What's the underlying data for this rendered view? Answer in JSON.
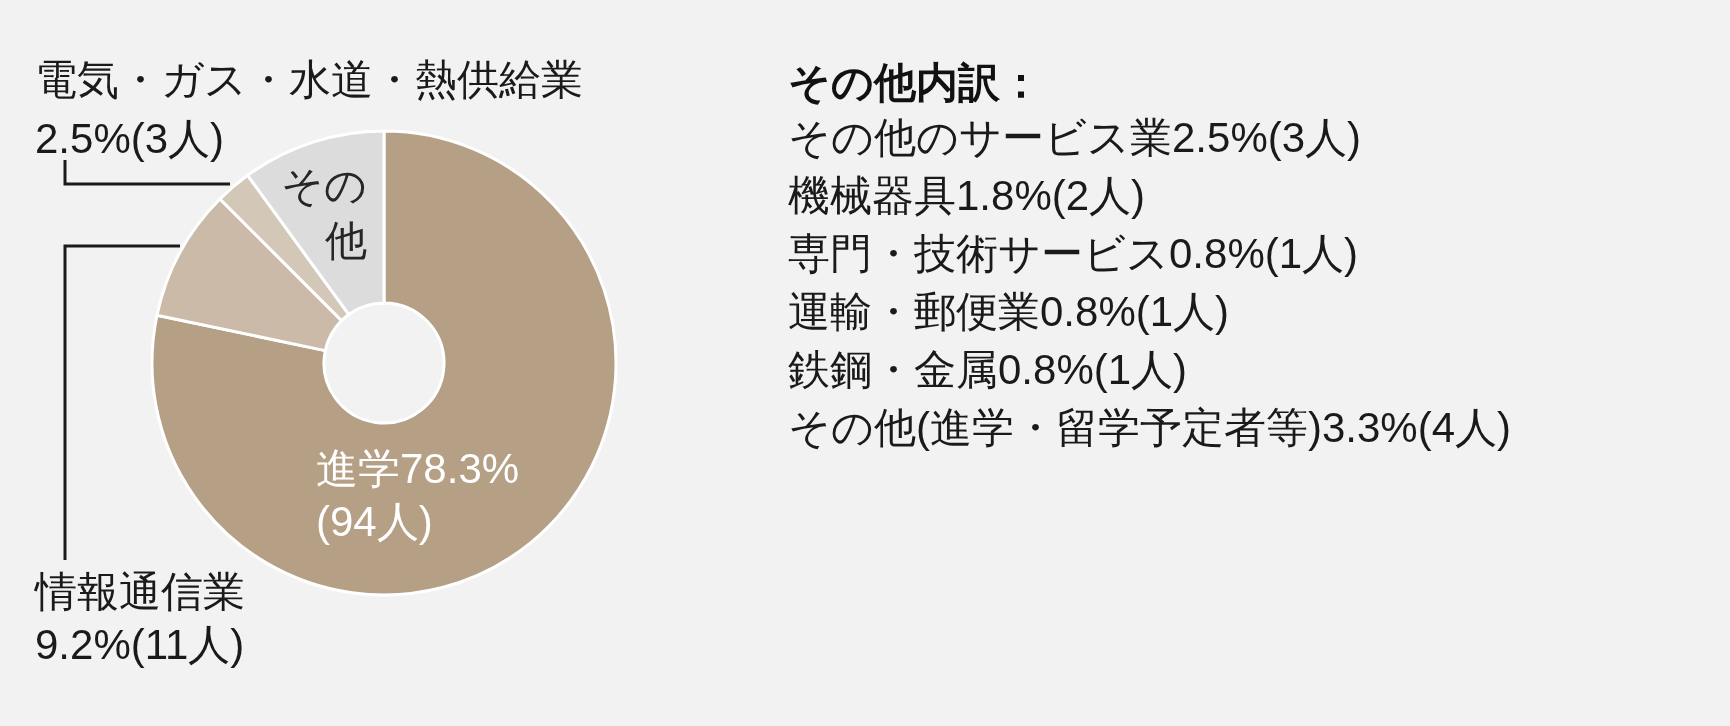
{
  "chart_data": [
    {
      "type": "donut",
      "categories": [
        "進学",
        "情報通信業",
        "電気・ガス・水道・熱供給業",
        "その他"
      ],
      "values": [
        78.3,
        9.2,
        2.5,
        10.0
      ],
      "colors": [
        "#b5a086",
        "#cabaa7",
        "#d3c7b8",
        "#dcdcdc"
      ],
      "value_labels": [
        "78.3%(94人)",
        "9.2%(11人)",
        "2.5%(3人)",
        null
      ]
    },
    {
      "type": "other",
      "title": "その他内訳：",
      "annotations": [
        "その他のサービス業2.5%(3人)",
        "機械器具1.8%(2人)",
        "専門・技術サービス0.8%(1人)",
        "運輸・郵便業0.8%(1人)",
        "鉄鋼・金属0.8%(1人)",
        "その他(進学・留学予定者等)3.3%(4人)"
      ]
    }
  ]
}
